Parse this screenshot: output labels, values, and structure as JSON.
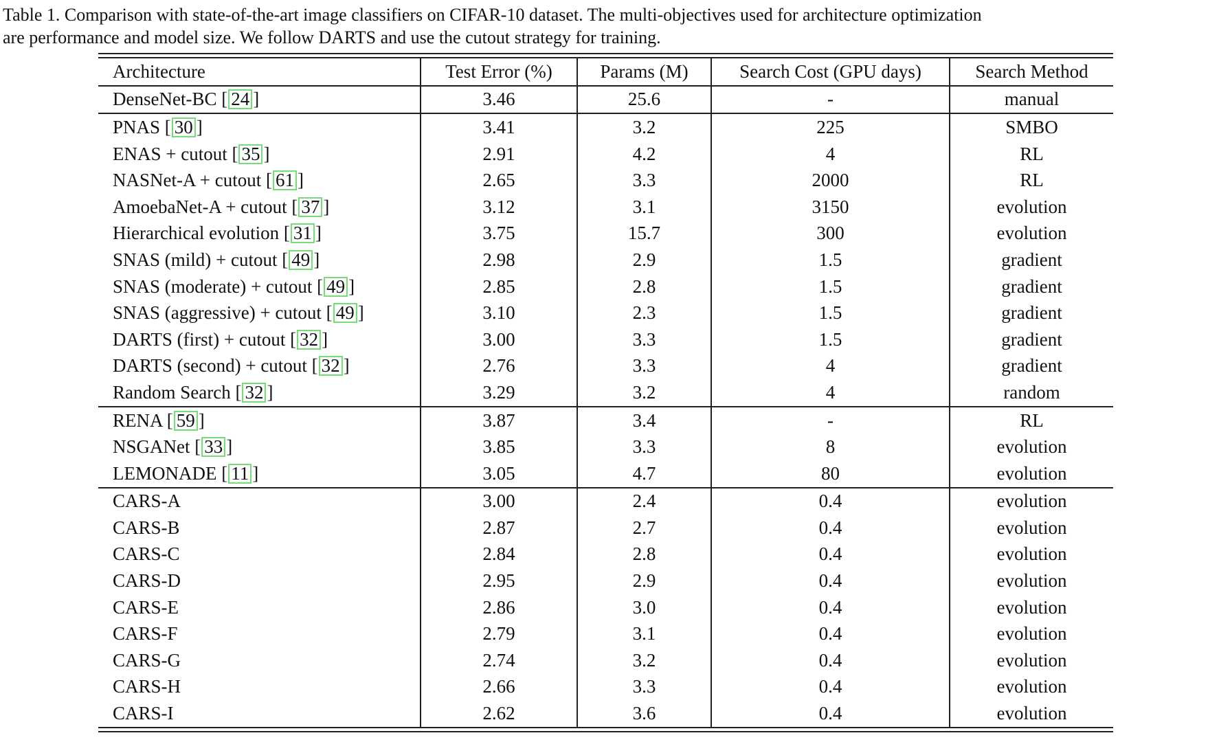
{
  "caption": {
    "line1": "Table 1. Comparison with state-of-the-art image classifiers on CIFAR-10 dataset. The multi-objectives used for architecture optimization",
    "line2": "are performance and model size. We follow DARTS and use the cutout strategy for training."
  },
  "table": {
    "columns": [
      "Architecture",
      "Test Error (%)",
      "Params (M)",
      "Search Cost (GPU days)",
      "Search Method"
    ],
    "citation_box_color": "#74DE74",
    "rows": [
      {
        "arch": "DenseNet-BC",
        "cite": "24",
        "test_error": "3.46",
        "params": "25.6",
        "cost": "-",
        "method": "manual",
        "divider_after": true
      },
      {
        "arch": "PNAS",
        "cite": "30",
        "test_error": "3.41",
        "params": "3.2",
        "cost": "225",
        "method": "SMBO",
        "divider_after": false
      },
      {
        "arch": "ENAS + cutout",
        "cite": "35",
        "test_error": "2.91",
        "params": "4.2",
        "cost": "4",
        "method": "RL",
        "divider_after": false
      },
      {
        "arch": "NASNet-A + cutout",
        "cite": "61",
        "test_error": "2.65",
        "params": "3.3",
        "cost": "2000",
        "method": "RL",
        "divider_after": false
      },
      {
        "arch": "AmoebaNet-A + cutout",
        "cite": "37",
        "test_error": "3.12",
        "params": "3.1",
        "cost": "3150",
        "method": "evolution",
        "divider_after": false
      },
      {
        "arch": "Hierarchical evolution",
        "cite": "31",
        "test_error": "3.75",
        "params": "15.7",
        "cost": "300",
        "method": "evolution",
        "divider_after": false
      },
      {
        "arch": "SNAS (mild) + cutout",
        "cite": "49",
        "test_error": "2.98",
        "params": "2.9",
        "cost": "1.5",
        "method": "gradient",
        "divider_after": false
      },
      {
        "arch": "SNAS (moderate) + cutout",
        "cite": "49",
        "test_error": "2.85",
        "params": "2.8",
        "cost": "1.5",
        "method": "gradient",
        "divider_after": false
      },
      {
        "arch": "SNAS (aggressive) + cutout",
        "cite": "49",
        "test_error": "3.10",
        "params": "2.3",
        "cost": "1.5",
        "method": "gradient",
        "divider_after": false
      },
      {
        "arch": "DARTS (first) + cutout",
        "cite": "32",
        "test_error": "3.00",
        "params": "3.3",
        "cost": "1.5",
        "method": "gradient",
        "divider_after": false
      },
      {
        "arch": "DARTS (second) + cutout",
        "cite": "32",
        "test_error": "2.76",
        "params": "3.3",
        "cost": "4",
        "method": "gradient",
        "divider_after": false
      },
      {
        "arch": "Random Search",
        "cite": "32",
        "test_error": "3.29",
        "params": "3.2",
        "cost": "4",
        "method": "random",
        "divider_after": true
      },
      {
        "arch": "RENA",
        "cite": "59",
        "test_error": "3.87",
        "params": "3.4",
        "cost": "-",
        "method": "RL",
        "divider_after": false
      },
      {
        "arch": "NSGANet",
        "cite": "33",
        "test_error": "3.85",
        "params": "3.3",
        "cost": "8",
        "method": "evolution",
        "divider_after": false
      },
      {
        "arch": "LEMONADE",
        "cite": "11",
        "test_error": "3.05",
        "params": "4.7",
        "cost": "80",
        "method": "evolution",
        "divider_after": true
      },
      {
        "arch": "CARS-A",
        "cite": "",
        "test_error": "3.00",
        "params": "2.4",
        "cost": "0.4",
        "method": "evolution",
        "divider_after": false
      },
      {
        "arch": "CARS-B",
        "cite": "",
        "test_error": "2.87",
        "params": "2.7",
        "cost": "0.4",
        "method": "evolution",
        "divider_after": false
      },
      {
        "arch": "CARS-C",
        "cite": "",
        "test_error": "2.84",
        "params": "2.8",
        "cost": "0.4",
        "method": "evolution",
        "divider_after": false
      },
      {
        "arch": "CARS-D",
        "cite": "",
        "test_error": "2.95",
        "params": "2.9",
        "cost": "0.4",
        "method": "evolution",
        "divider_after": false
      },
      {
        "arch": "CARS-E",
        "cite": "",
        "test_error": "2.86",
        "params": "3.0",
        "cost": "0.4",
        "method": "evolution",
        "divider_after": false
      },
      {
        "arch": "CARS-F",
        "cite": "",
        "test_error": "2.79",
        "params": "3.1",
        "cost": "0.4",
        "method": "evolution",
        "divider_after": false
      },
      {
        "arch": "CARS-G",
        "cite": "",
        "test_error": "2.74",
        "params": "3.2",
        "cost": "0.4",
        "method": "evolution",
        "divider_after": false
      },
      {
        "arch": "CARS-H",
        "cite": "",
        "test_error": "2.66",
        "params": "3.3",
        "cost": "0.4",
        "method": "evolution",
        "divider_after": false
      },
      {
        "arch": "CARS-I",
        "cite": "",
        "test_error": "2.62",
        "params": "3.6",
        "cost": "0.4",
        "method": "evolution",
        "divider_after": false
      }
    ]
  }
}
